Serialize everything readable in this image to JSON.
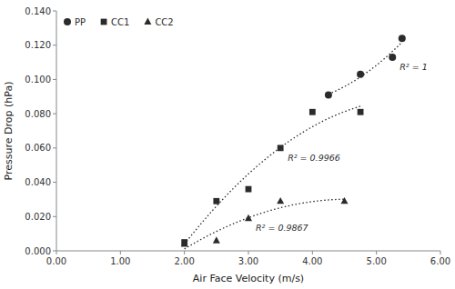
{
  "chart_data": {
    "type": "scatter",
    "x_label": "Air Face Velocity (m/s)",
    "y_label": "Pressure Drop (hPa)",
    "color": "#2b2b2b",
    "legend": "top-left",
    "grid": false,
    "xlim": [
      0.0,
      6.0
    ],
    "ylim": [
      0.0,
      0.14
    ],
    "xticks": [
      {
        "value": 0.0,
        "label": "0.00"
      },
      {
        "value": 1.0,
        "label": "1.00"
      },
      {
        "value": 2.0,
        "label": "2.00"
      },
      {
        "value": 3.0,
        "label": "3.00"
      },
      {
        "value": 4.0,
        "label": "4.00"
      },
      {
        "value": 5.0,
        "label": "5.00"
      },
      {
        "value": 6.0,
        "label": "6.00"
      }
    ],
    "yticks": [
      {
        "value": 0.0,
        "label": "0.000"
      },
      {
        "value": 0.02,
        "label": "0.020"
      },
      {
        "value": 0.04,
        "label": "0.040"
      },
      {
        "value": 0.06,
        "label": "0.060"
      },
      {
        "value": 0.08,
        "label": "0.080"
      },
      {
        "value": 0.1,
        "label": "0.100"
      },
      {
        "value": 0.12,
        "label": "0.120"
      },
      {
        "value": 0.14,
        "label": "0.140"
      }
    ],
    "series": [
      {
        "name": "PP",
        "marker": "circle",
        "line_style": "dotted",
        "annotation": "R² = 1",
        "x": [
          4.25,
          4.75,
          5.25,
          5.4
        ],
        "values": [
          0.091,
          0.103,
          0.113,
          0.124
        ]
      },
      {
        "name": "CC1",
        "marker": "square",
        "line_style": "dotted",
        "annotation": "R² = 0.9966",
        "x": [
          2.0,
          2.5,
          3.0,
          3.5,
          4.0,
          4.75
        ],
        "values": [
          0.005,
          0.029,
          0.036,
          0.06,
          0.081,
          0.081
        ]
      },
      {
        "name": "CC2",
        "marker": "triangle",
        "line_style": "dotted",
        "annotation": "R² = 0.9867",
        "x": [
          2.0,
          2.5,
          3.0,
          3.5,
          4.5
        ],
        "values": [
          0.004,
          0.006,
          0.019,
          0.029,
          0.029
        ]
      }
    ]
  }
}
